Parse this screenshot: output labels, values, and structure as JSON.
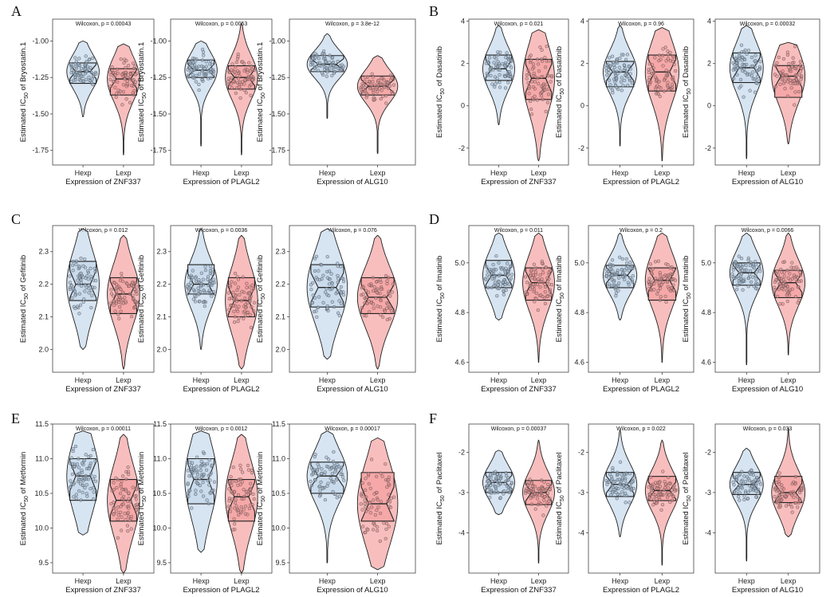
{
  "colors": {
    "hexp": "#c9dbec",
    "lexp": "#f6a8a8",
    "hexp_point": "#9bb7d4",
    "lexp_point": "#e98a8a",
    "outline": "#222222"
  },
  "x_categories": [
    "Hexp",
    "Lexp"
  ],
  "chart_data": [
    {
      "type": "violin",
      "panel": "A",
      "ylabel": "Estimated IC50 of Bryostatin.1",
      "yticks": [
        -1.75,
        -1.5,
        -1.25,
        -1.0
      ],
      "ylim": [
        -1.85,
        -0.85
      ],
      "plots": [
        {
          "title": "Wilcoxon, p = 0.00043",
          "xlabel": "Expression of ZNF337",
          "groups": [
            {
              "name": "Hexp",
              "min": -1.52,
              "max": -1.0,
              "q1": -1.29,
              "median": -1.21,
              "q3": -1.15
            },
            {
              "name": "Lexp",
              "min": -1.78,
              "max": -1.02,
              "q1": -1.37,
              "median": -1.26,
              "q3": -1.19
            }
          ]
        },
        {
          "title": "Wilcoxon, p = 0.0053",
          "xlabel": "Expression of PLAGL2",
          "groups": [
            {
              "name": "Hexp",
              "min": -1.72,
              "max": -1.0,
              "q1": -1.25,
              "median": -1.2,
              "q3": -1.13
            },
            {
              "name": "Lexp",
              "min": -1.78,
              "max": -0.88,
              "q1": -1.33,
              "median": -1.25,
              "q3": -1.17
            }
          ]
        },
        {
          "title": "Wilcoxon, p = 3.8e-12",
          "xlabel": "Expression of ALG10",
          "groups": [
            {
              "name": "Hexp",
              "min": -1.53,
              "max": -0.95,
              "q1": -1.21,
              "median": -1.16,
              "q3": -1.1
            },
            {
              "name": "Lexp",
              "min": -1.77,
              "max": -1.1,
              "q1": -1.37,
              "median": -1.31,
              "q3": -1.24
            }
          ]
        }
      ]
    },
    {
      "type": "violin",
      "panel": "B",
      "ylabel": "Estimated IC50 of Dasatinib",
      "yticks": [
        -2,
        0,
        2,
        4
      ],
      "ylim": [
        -2.8,
        4.1
      ],
      "plots": [
        {
          "title": "Wilcoxon, p = 0.021",
          "xlabel": "Expression of ZNF337",
          "groups": [
            {
              "name": "Hexp",
              "min": -0.9,
              "max": 3.8,
              "q1": 1.2,
              "median": 1.75,
              "q3": 2.4
            },
            {
              "name": "Lexp",
              "min": -2.6,
              "max": 3.6,
              "q1": 0.3,
              "median": 1.3,
              "q3": 2.2
            }
          ]
        },
        {
          "title": "Wilcoxon, p = 0.96",
          "xlabel": "Expression of PLAGL2",
          "groups": [
            {
              "name": "Hexp",
              "min": -1.9,
              "max": 3.8,
              "q1": 0.9,
              "median": 1.6,
              "q3": 2.1
            },
            {
              "name": "Lexp",
              "min": -2.6,
              "max": 3.7,
              "q1": 0.7,
              "median": 1.6,
              "q3": 2.4
            }
          ]
        },
        {
          "title": "Wilcoxon, p = 0.00032",
          "xlabel": "Expression of ALG10",
          "groups": [
            {
              "name": "Hexp",
              "min": -2.5,
              "max": 3.8,
              "q1": 1.1,
              "median": 1.8,
              "q3": 2.5
            },
            {
              "name": "Lexp",
              "min": -1.8,
              "max": 3.0,
              "q1": 0.4,
              "median": 1.4,
              "q3": 1.9
            }
          ]
        }
      ]
    },
    {
      "type": "violin",
      "panel": "C",
      "ylabel": "Estimated IC50 of Gefitinib",
      "yticks": [
        2.0,
        2.1,
        2.2,
        2.3
      ],
      "ylim": [
        1.93,
        2.38
      ],
      "plots": [
        {
          "title": "Wilcoxon, p = 0.012",
          "xlabel": "Expression of ZNF337",
          "groups": [
            {
              "name": "Hexp",
              "min": 2.0,
              "max": 2.37,
              "q1": 2.15,
              "median": 2.2,
              "q3": 2.27
            },
            {
              "name": "Lexp",
              "min": 1.94,
              "max": 2.35,
              "q1": 2.11,
              "median": 2.17,
              "q3": 2.22
            }
          ]
        },
        {
          "title": "Wilcoxon, p = 0.0036",
          "xlabel": "Expression of PLAGL2",
          "groups": [
            {
              "name": "Hexp",
              "min": 2.0,
              "max": 2.37,
              "q1": 2.17,
              "median": 2.2,
              "q3": 2.26
            },
            {
              "name": "Lexp",
              "min": 1.94,
              "max": 2.35,
              "q1": 2.1,
              "median": 2.15,
              "q3": 2.22
            }
          ]
        },
        {
          "title": "Wilcoxon, p = 0.076",
          "xlabel": "Expression of ALG10",
          "groups": [
            {
              "name": "Hexp",
              "min": 1.97,
              "max": 2.37,
              "q1": 2.13,
              "median": 2.19,
              "q3": 2.26
            },
            {
              "name": "Lexp",
              "min": 1.94,
              "max": 2.35,
              "q1": 2.11,
              "median": 2.16,
              "q3": 2.22
            }
          ]
        }
      ]
    },
    {
      "type": "violin",
      "panel": "D",
      "ylabel": "Estimated IC50 of Imatinib",
      "yticks": [
        4.6,
        4.8,
        5.0
      ],
      "ylim": [
        4.56,
        5.15
      ],
      "plots": [
        {
          "title": "Wilcoxon, p = 0.011",
          "xlabel": "Expression of ZNF337",
          "groups": [
            {
              "name": "Hexp",
              "min": 4.77,
              "max": 5.12,
              "q1": 4.9,
              "median": 4.95,
              "q3": 5.01
            },
            {
              "name": "Lexp",
              "min": 4.6,
              "max": 5.12,
              "q1": 4.85,
              "median": 4.92,
              "q3": 4.98
            }
          ]
        },
        {
          "title": "Wilcoxon, p = 0.2",
          "xlabel": "Expression of PLAGL2",
          "groups": [
            {
              "name": "Hexp",
              "min": 4.77,
              "max": 5.12,
              "q1": 4.9,
              "median": 4.95,
              "q3": 4.99
            },
            {
              "name": "Lexp",
              "min": 4.6,
              "max": 5.12,
              "q1": 4.85,
              "median": 4.93,
              "q3": 4.98
            }
          ]
        },
        {
          "title": "Wilcoxon, p = 0.0066",
          "xlabel": "Expression of ALG10",
          "groups": [
            {
              "name": "Hexp",
              "min": 4.59,
              "max": 5.12,
              "q1": 4.91,
              "median": 4.96,
              "q3": 5.0
            },
            {
              "name": "Lexp",
              "min": 4.63,
              "max": 5.12,
              "q1": 4.86,
              "median": 4.92,
              "q3": 4.97
            }
          ]
        }
      ]
    },
    {
      "type": "violin",
      "panel": "E",
      "ylabel": "Estimated IC50 of Metformin",
      "yticks": [
        9.5,
        10.0,
        10.5,
        11.0,
        11.5
      ],
      "ylim": [
        9.35,
        11.5
      ],
      "plots": [
        {
          "title": "Wilcoxon, p = 0.00011",
          "xlabel": "Expression of ZNF337",
          "groups": [
            {
              "name": "Hexp",
              "min": 9.9,
              "max": 11.4,
              "q1": 10.4,
              "median": 10.75,
              "q3": 11.0
            },
            {
              "name": "Lexp",
              "min": 9.35,
              "max": 11.35,
              "q1": 10.1,
              "median": 10.4,
              "q3": 10.7
            }
          ]
        },
        {
          "title": "Wilcoxon, p = 0.0012",
          "xlabel": "Expression of PLAGL2",
          "groups": [
            {
              "name": "Hexp",
              "min": 9.65,
              "max": 11.4,
              "q1": 10.35,
              "median": 10.7,
              "q3": 11.0
            },
            {
              "name": "Lexp",
              "min": 9.35,
              "max": 11.35,
              "q1": 10.1,
              "median": 10.45,
              "q3": 10.7
            }
          ]
        },
        {
          "title": "Wilcoxon, p = 0.00017",
          "xlabel": "Expression of ALG10",
          "groups": [
            {
              "name": "Hexp",
              "min": 9.5,
              "max": 11.4,
              "q1": 10.5,
              "median": 10.75,
              "q3": 10.95
            },
            {
              "name": "Lexp",
              "min": 9.4,
              "max": 11.3,
              "q1": 10.1,
              "median": 10.35,
              "q3": 10.8
            }
          ]
        }
      ]
    },
    {
      "type": "violin",
      "panel": "F",
      "ylabel": "Estimated IC50 of Paclitaxel",
      "yticks": [
        -4,
        -3,
        -2
      ],
      "ylim": [
        -5.0,
        -1.3
      ],
      "plots": [
        {
          "title": "Wilcoxon, p = 0.00037",
          "xlabel": "Expression of ZNF337",
          "groups": [
            {
              "name": "Hexp",
              "min": -3.55,
              "max": -1.95,
              "q1": -3.0,
              "median": -2.75,
              "q3": -2.5
            },
            {
              "name": "Lexp",
              "min": -4.75,
              "max": -1.7,
              "q1": -3.3,
              "median": -3.0,
              "q3": -2.7
            }
          ]
        },
        {
          "title": "Wilcoxon, p = 0.022",
          "xlabel": "Expression of PLAGL2",
          "groups": [
            {
              "name": "Hexp",
              "min": -4.1,
              "max": -1.45,
              "q1": -3.1,
              "median": -2.8,
              "q3": -2.5
            },
            {
              "name": "Lexp",
              "min": -4.8,
              "max": -1.7,
              "q1": -3.2,
              "median": -2.95,
              "q3": -2.6
            }
          ]
        },
        {
          "title": "Wilcoxon, p = 0.033",
          "xlabel": "Expression of ALG10",
          "groups": [
            {
              "name": "Hexp",
              "min": -4.7,
              "max": -1.9,
              "q1": -3.05,
              "median": -2.8,
              "q3": -2.5
            },
            {
              "name": "Lexp",
              "min": -4.1,
              "max": -1.4,
              "q1": -3.25,
              "median": -3.0,
              "q3": -2.6
            }
          ]
        }
      ]
    }
  ]
}
